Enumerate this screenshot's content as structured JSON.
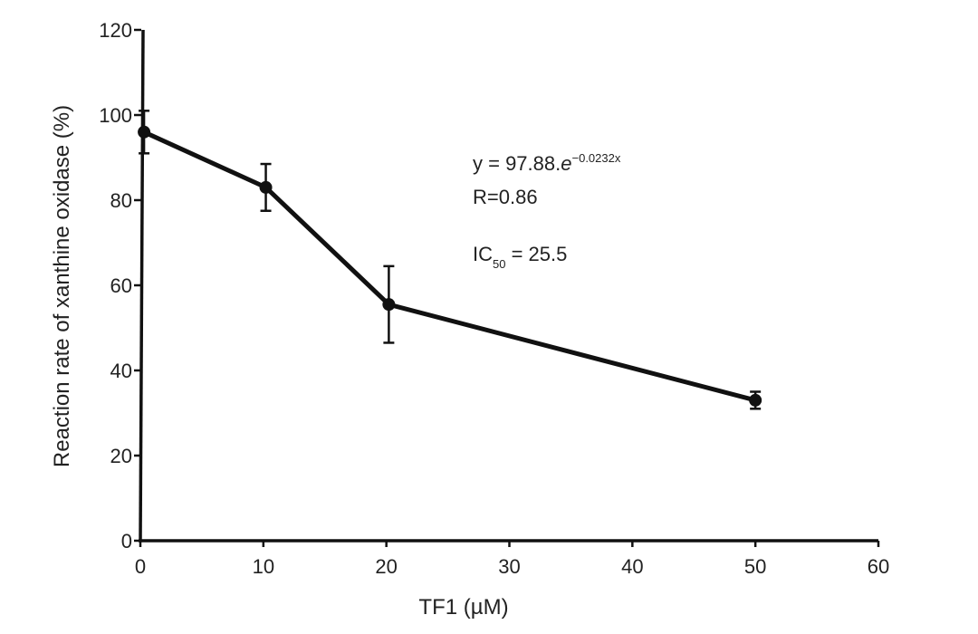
{
  "chart_data": {
    "type": "line",
    "title": "",
    "xlabel": "TF1 (µM)",
    "ylabel": "Reaction rate of xanthine oxidase (%)",
    "xlim": [
      0,
      60
    ],
    "ylim": [
      0,
      120
    ],
    "xticks": [
      0,
      10,
      20,
      30,
      40,
      50,
      60
    ],
    "yticks": [
      0,
      20,
      40,
      60,
      80,
      100,
      120
    ],
    "grid": false,
    "series": [
      {
        "name": "Reaction rate",
        "x": [
          0.3,
          10.2,
          20.2,
          50
        ],
        "y": [
          96,
          83,
          55.5,
          33
        ],
        "error": [
          5,
          5.5,
          9,
          2
        ]
      }
    ],
    "annotations": {
      "equation_prefix": "y = 97.88.",
      "equation_e": "e",
      "equation_exponent": "−0.0232x",
      "r_value": "R=0.86",
      "ic_label": "IC",
      "ic_subscript": "50",
      "ic_value": " = 25.5"
    }
  }
}
